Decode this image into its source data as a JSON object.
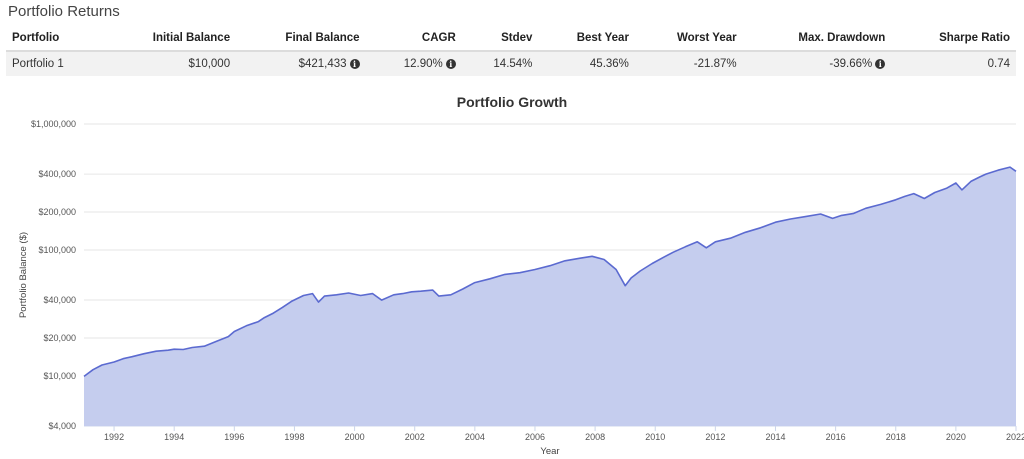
{
  "section_title": "Portfolio Returns",
  "table": {
    "headers": [
      "Portfolio",
      "Initial Balance",
      "Final Balance",
      "CAGR",
      "Stdev",
      "Best Year",
      "Worst Year",
      "Max. Drawdown",
      "Sharpe Ratio"
    ],
    "rows": [
      [
        "Portfolio 1",
        "$10,000",
        "$421,433",
        "12.90%",
        "14.54%",
        "45.36%",
        "-21.87%",
        "-39.66%",
        "0.74"
      ]
    ]
  },
  "chart_data": {
    "type": "area",
    "title": "Portfolio Growth",
    "xlabel": "Year",
    "ylabel": "Portfolio Balance ($)",
    "yscale": "log",
    "ylim": [
      4000,
      1000000
    ],
    "xlim": [
      1991,
      2022
    ],
    "grid": "horizontal",
    "ytick_labels": [
      "$4,000",
      "$10,000",
      "$20,000",
      "$40,000",
      "$100,000",
      "$200,000",
      "$400,000",
      "$1,000,000"
    ],
    "xtick_labels": [
      "1992",
      "1994",
      "1996",
      "1998",
      "2000",
      "2002",
      "2004",
      "2006",
      "2008",
      "2010",
      "2012",
      "2014",
      "2016",
      "2018",
      "2020",
      "2022"
    ],
    "color": "#5b6ad0",
    "fill": "#c5cdee",
    "series": [
      {
        "x": [
          1991.0,
          1991.3,
          1991.6,
          1992.0,
          1992.3,
          1992.6,
          1993.0,
          1993.4,
          1993.8,
          1994.0,
          1994.3,
          1994.6,
          1995.0,
          1995.4,
          1995.8,
          1996.0,
          1996.4,
          1996.8,
          1997.0,
          1997.3,
          1997.6,
          1997.9,
          1998.3,
          1998.6,
          1998.8,
          1999.0,
          1999.4,
          1999.8,
          2000.2,
          2000.6,
          2000.9,
          2001.3,
          2001.6,
          2001.9,
          2002.2,
          2002.6,
          2002.8,
          2003.2,
          2003.6,
          2004.0,
          2004.5,
          2005.0,
          2005.5,
          2006.0,
          2006.5,
          2007.0,
          2007.5,
          2007.9,
          2008.3,
          2008.7,
          2009.0,
          2009.2,
          2009.5,
          2009.9,
          2010.3,
          2010.6,
          2011.0,
          2011.4,
          2011.7,
          2012.0,
          2012.5,
          2013.0,
          2013.5,
          2014.0,
          2014.5,
          2015.0,
          2015.5,
          2015.9,
          2016.2,
          2016.6,
          2017.0,
          2017.5,
          2018.0,
          2018.3,
          2018.6,
          2018.95,
          2019.3,
          2019.7,
          2020.0,
          2020.2,
          2020.5,
          2020.8,
          2021.0,
          2021.4,
          2021.8,
          2022.0
        ],
        "y": [
          9900,
          11200,
          12200,
          12900,
          13700,
          14200,
          15000,
          15700,
          16000,
          16300,
          16200,
          16800,
          17200,
          18800,
          20500,
          22500,
          25000,
          27000,
          29000,
          31500,
          35000,
          39000,
          43500,
          45000,
          38500,
          43000,
          44000,
          45500,
          43500,
          45000,
          40000,
          44000,
          45000,
          46500,
          47000,
          48000,
          43000,
          44000,
          49000,
          55000,
          59000,
          64000,
          66000,
          70000,
          75000,
          82000,
          86000,
          89000,
          84000,
          70000,
          52000,
          60000,
          68000,
          78000,
          88000,
          96000,
          106000,
          116000,
          104000,
          116000,
          124000,
          138000,
          150000,
          166000,
          176000,
          184000,
          193000,
          178000,
          188000,
          195000,
          214000,
          230000,
          250000,
          266000,
          280000,
          256000,
          286000,
          310000,
          340000,
          300000,
          350000,
          380000,
          400000,
          430000,
          455000,
          421433
        ]
      }
    ]
  }
}
